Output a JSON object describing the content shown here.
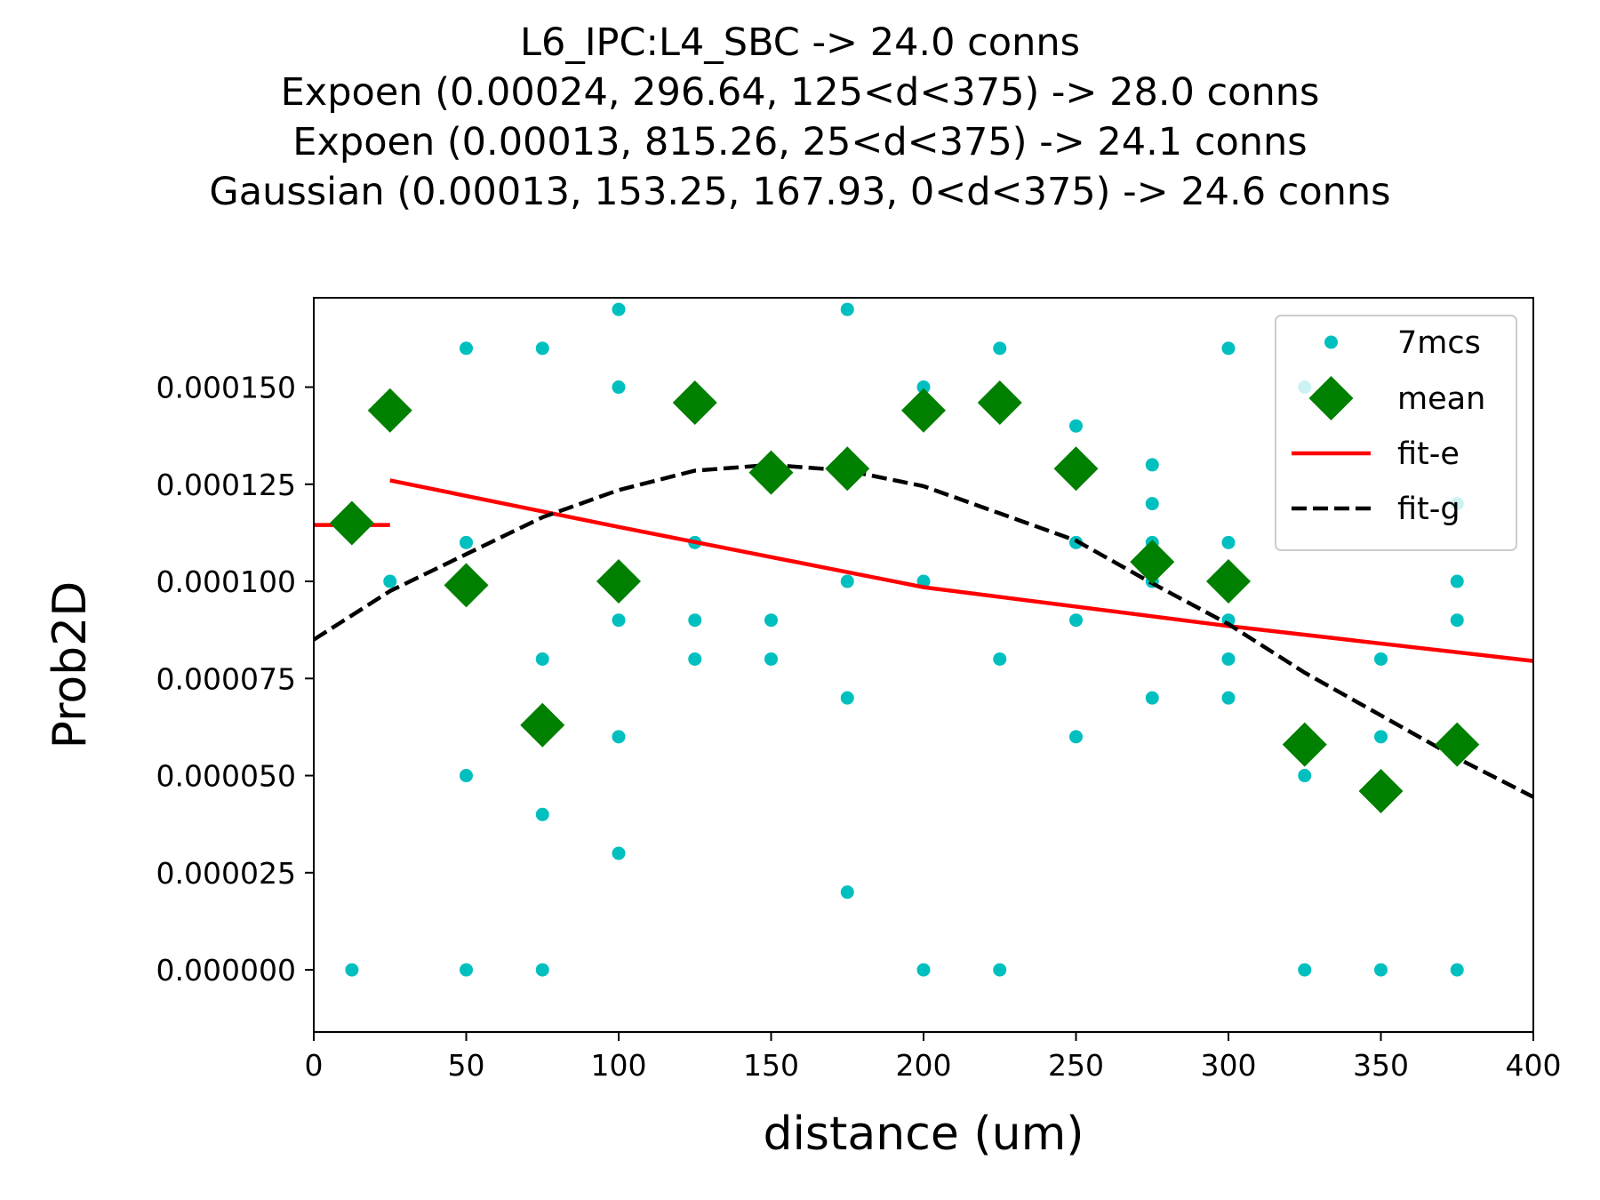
{
  "chart_data": {
    "type": "scatter",
    "title_lines": [
      "L6_IPC:L4_SBC -> 24.0 conns",
      "Expoen (0.00024, 296.64, 125<d<375) -> 28.0 conns",
      "Expoen (0.00013, 815.26, 25<d<375) -> 24.1 conns",
      "Gaussian (0.00013, 153.25, 167.93, 0<d<375) -> 24.6 conns"
    ],
    "xlabel": "distance (um)",
    "ylabel": "Prob2D",
    "xlim": [
      0,
      400
    ],
    "ylim": [
      -1.6e-05,
      0.000173
    ],
    "xticks": [
      {
        "value": 0,
        "label": "0"
      },
      {
        "value": 50,
        "label": "50"
      },
      {
        "value": 100,
        "label": "100"
      },
      {
        "value": 150,
        "label": "150"
      },
      {
        "value": 200,
        "label": "200"
      },
      {
        "value": 250,
        "label": "250"
      },
      {
        "value": 300,
        "label": "300"
      },
      {
        "value": 350,
        "label": "350"
      },
      {
        "value": 400,
        "label": "400"
      }
    ],
    "yticks": [
      {
        "value": 0.0,
        "label": "0.000000"
      },
      {
        "value": 2.5e-05,
        "label": "0.000025"
      },
      {
        "value": 5e-05,
        "label": "0.000050"
      },
      {
        "value": 7.5e-05,
        "label": "0.000075"
      },
      {
        "value": 0.0001,
        "label": "0.000100"
      },
      {
        "value": 0.000125,
        "label": "0.000125"
      },
      {
        "value": 0.00015,
        "label": "0.000150"
      }
    ],
    "grid": false,
    "legend_position": "top-right",
    "series": [
      {
        "name": "7mcs",
        "kind": "points",
        "color": "#00bfbf",
        "points": [
          [
            12.5,
            0.0
          ],
          [
            25,
            0.0001
          ],
          [
            50,
            0.00016
          ],
          [
            50,
            0.00011
          ],
          [
            50,
            5e-05
          ],
          [
            50,
            0.0
          ],
          [
            75,
            0.00016
          ],
          [
            75,
            8e-05
          ],
          [
            75,
            4e-05
          ],
          [
            75,
            0.0
          ],
          [
            100,
            0.00017
          ],
          [
            100,
            0.00015
          ],
          [
            100,
            9e-05
          ],
          [
            100,
            6e-05
          ],
          [
            100,
            3e-05
          ],
          [
            125,
            0.00011
          ],
          [
            125,
            9e-05
          ],
          [
            125,
            8e-05
          ],
          [
            150,
            9e-05
          ],
          [
            150,
            8e-05
          ],
          [
            175,
            0.00017
          ],
          [
            175,
            0.0001
          ],
          [
            175,
            7e-05
          ],
          [
            175,
            2e-05
          ],
          [
            200,
            0.00015
          ],
          [
            200,
            0.0001
          ],
          [
            200,
            0.0
          ],
          [
            225,
            0.00016
          ],
          [
            225,
            8e-05
          ],
          [
            225,
            0.0
          ],
          [
            250,
            0.00014
          ],
          [
            250,
            0.00011
          ],
          [
            250,
            9e-05
          ],
          [
            250,
            6e-05
          ],
          [
            275,
            0.00013
          ],
          [
            275,
            0.00012
          ],
          [
            275,
            0.00011
          ],
          [
            275,
            0.0001
          ],
          [
            275,
            7e-05
          ],
          [
            300,
            0.00016
          ],
          [
            300,
            0.00011
          ],
          [
            300,
            9e-05
          ],
          [
            300,
            8e-05
          ],
          [
            300,
            7e-05
          ],
          [
            325,
            0.00015
          ],
          [
            325,
            5e-05
          ],
          [
            325,
            0.0
          ],
          [
            350,
            8e-05
          ],
          [
            350,
            6e-05
          ],
          [
            350,
            0.0
          ],
          [
            375,
            0.00012
          ],
          [
            375,
            0.0001
          ],
          [
            375,
            9e-05
          ],
          [
            375,
            0.0
          ]
        ]
      },
      {
        "name": "mean",
        "kind": "diamonds",
        "color": "#008000",
        "points": [
          [
            12.5,
            0.000115
          ],
          [
            25,
            0.000144
          ],
          [
            50,
            9.9e-05
          ],
          [
            75,
            6.3e-05
          ],
          [
            100,
            0.0001
          ],
          [
            125,
            0.000146
          ],
          [
            150,
            0.000128
          ],
          [
            175,
            0.000129
          ],
          [
            200,
            0.000144
          ],
          [
            225,
            0.000146
          ],
          [
            250,
            0.000129
          ],
          [
            275,
            0.000105
          ],
          [
            300,
            0.0001
          ],
          [
            325,
            5.8e-05
          ],
          [
            350,
            4.6e-05
          ],
          [
            375,
            5.8e-05
          ]
        ]
      },
      {
        "name": "fit-e",
        "kind": "line",
        "color": "#ff0000",
        "segments": [
          [
            [
              0,
              0.0001145
            ],
            [
              25,
              0.0001145
            ]
          ],
          [
            [
              25,
              0.000126
            ],
            [
              100,
              0.000114
            ],
            [
              200,
              9.85e-05
            ],
            [
              300,
              8.85e-05
            ],
            [
              400,
              7.95e-05
            ]
          ]
        ]
      },
      {
        "name": "fit-g",
        "kind": "dashed-line",
        "color": "#000000",
        "points": [
          [
            0,
            8.5e-05
          ],
          [
            25,
            9.75e-05
          ],
          [
            50,
            0.000107
          ],
          [
            75,
            0.0001165
          ],
          [
            100,
            0.0001235
          ],
          [
            125,
            0.0001285
          ],
          [
            150,
            0.00013
          ],
          [
            175,
            0.0001285
          ],
          [
            200,
            0.0001245
          ],
          [
            225,
            0.0001175
          ],
          [
            250,
            0.0001105
          ],
          [
            275,
            9.95e-05
          ],
          [
            300,
            8.9e-05
          ],
          [
            325,
            7.65e-05
          ],
          [
            350,
            6.55e-05
          ],
          [
            375,
            5.45e-05
          ],
          [
            400,
            4.45e-05
          ]
        ]
      }
    ]
  }
}
